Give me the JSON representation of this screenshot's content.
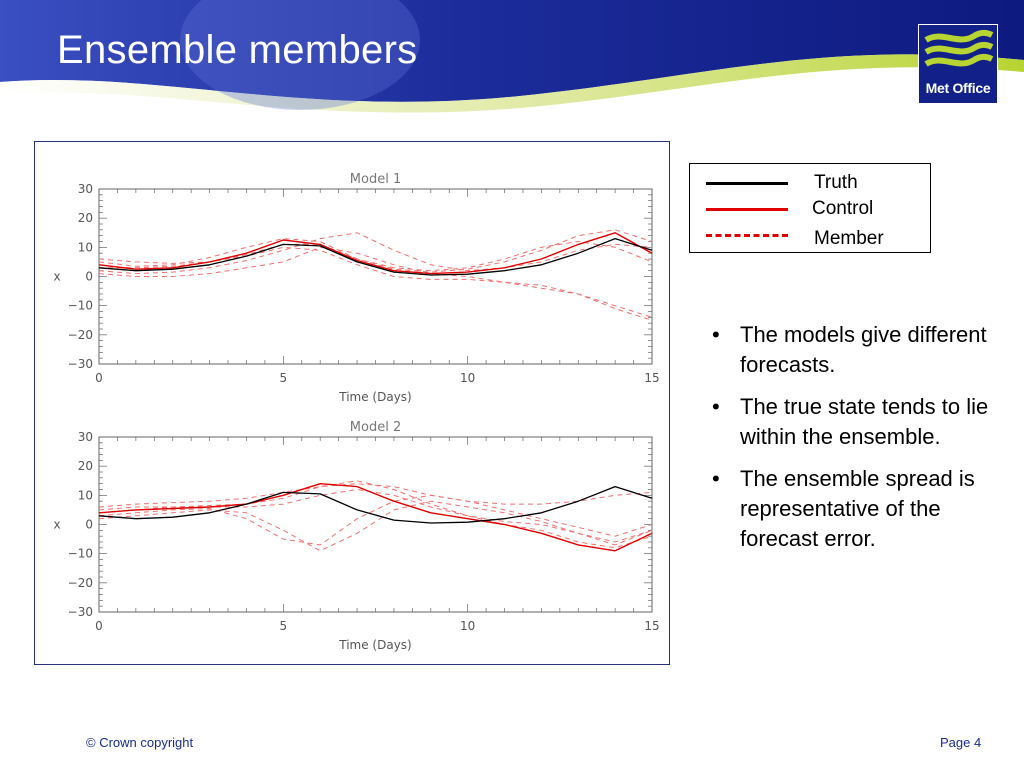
{
  "slide": {
    "title": "Ensemble members",
    "logo_text": "Met Office",
    "footer_left": "© Crown copyright",
    "footer_right": "Page 4"
  },
  "legend": {
    "items": [
      {
        "label": "Truth",
        "color": "#000000",
        "style": "solid"
      },
      {
        "label": "Control",
        "color": "#e00000",
        "style": "solid"
      },
      {
        "label": "Member",
        "color": "#e00000",
        "style": "dashed"
      }
    ]
  },
  "bullets": [
    " The models give different forecasts.",
    "The true state tends to lie within the ensemble.",
    "The ensemble spread is representative of the forecast error."
  ],
  "colors": {
    "header_blue": "#12208a",
    "accent_green": "#b7d433",
    "truth": "#000000",
    "control": "#e00000",
    "member": "#f07070",
    "footer_text": "#1a2b8c"
  },
  "chart_data": [
    {
      "type": "line",
      "title": "Model 1",
      "xlabel": "Time (Days)",
      "ylabel": "x",
      "xlim": [
        0,
        15
      ],
      "ylim": [
        -30,
        30
      ],
      "xticks": [
        0,
        5,
        10,
        15
      ],
      "yticks": [
        30,
        20,
        10,
        0,
        -10,
        -20,
        -30
      ],
      "x": [
        0,
        1,
        2,
        3,
        4,
        5,
        6,
        7,
        8,
        9,
        10,
        11,
        12,
        13,
        14,
        15
      ],
      "series": [
        {
          "name": "Truth",
          "values": [
            3,
            2,
            2.5,
            4,
            7,
            11,
            10.5,
            5,
            1.5,
            0.5,
            0.8,
            2,
            4,
            8,
            13,
            9
          ]
        },
        {
          "name": "Control",
          "values": [
            4,
            2.5,
            3,
            5,
            8,
            12.5,
            11,
            5.5,
            2,
            1,
            1.5,
            3,
            6,
            11,
            15,
            8
          ]
        },
        {
          "name": "Member",
          "values": [
            5,
            3.5,
            4,
            6.5,
            10,
            13,
            12,
            6,
            2.5,
            1.5,
            2.5,
            5,
            9,
            14,
            16,
            12
          ]
        },
        {
          "name": "Member",
          "values": [
            2,
            1,
            1.5,
            3,
            5.5,
            9,
            13,
            15,
            9,
            4,
            2,
            3,
            5,
            9,
            11,
            10
          ]
        },
        {
          "name": "Member",
          "values": [
            1,
            0,
            0,
            1,
            3,
            5,
            10,
            8,
            4,
            1,
            0,
            -2,
            -4,
            -6,
            -11,
            -15
          ]
        },
        {
          "name": "Member",
          "values": [
            6,
            5,
            4.5,
            5,
            7,
            10,
            9,
            4,
            0,
            -1,
            -1,
            -2,
            -3,
            -6,
            -10,
            -14
          ]
        },
        {
          "name": "Member",
          "values": [
            3,
            3,
            3.5,
            5,
            7.5,
            11,
            11,
            6,
            3,
            2,
            3,
            6,
            10,
            12,
            10,
            5
          ]
        }
      ]
    },
    {
      "type": "line",
      "title": "Model 2",
      "xlabel": "Time (Days)",
      "ylabel": "x",
      "xlim": [
        0,
        15
      ],
      "ylim": [
        -30,
        30
      ],
      "xticks": [
        0,
        5,
        10,
        15
      ],
      "yticks": [
        30,
        20,
        10,
        0,
        -10,
        -20,
        -30
      ],
      "x": [
        0,
        1,
        2,
        3,
        4,
        5,
        6,
        7,
        8,
        9,
        10,
        11,
        12,
        13,
        14,
        15
      ],
      "series": [
        {
          "name": "Truth",
          "values": [
            3,
            2,
            2.5,
            4,
            7,
            11,
            10.5,
            5,
            1.5,
            0.5,
            0.8,
            2,
            4,
            8,
            13,
            9
          ]
        },
        {
          "name": "Control",
          "values": [
            4,
            5,
            5.5,
            6,
            7,
            10,
            14,
            13,
            8,
            4,
            2,
            0,
            -3,
            -7,
            -9,
            -3
          ]
        },
        {
          "name": "Member",
          "values": [
            5,
            6,
            6,
            6.5,
            7,
            9,
            13,
            15,
            12,
            7,
            3,
            0,
            -2,
            -6,
            -8,
            -4
          ]
        },
        {
          "name": "Member",
          "values": [
            2,
            3,
            4,
            5,
            4,
            -2,
            -9,
            -3,
            5,
            8,
            6,
            4,
            1,
            -3,
            -7,
            -2
          ]
        },
        {
          "name": "Member",
          "values": [
            3,
            4,
            5,
            5.5,
            2,
            -5,
            -7,
            2,
            8,
            10,
            8,
            5,
            2,
            -1,
            -4,
            0
          ]
        },
        {
          "name": "Member",
          "values": [
            6,
            7,
            7.5,
            8,
            9,
            11,
            13,
            14,
            13,
            10,
            8,
            7,
            7,
            8,
            10,
            11
          ]
        },
        {
          "name": "Member",
          "values": [
            4,
            5,
            6,
            6,
            6,
            7,
            10,
            12,
            10,
            6,
            3,
            1,
            0,
            -3,
            -6,
            -2
          ]
        }
      ]
    }
  ]
}
